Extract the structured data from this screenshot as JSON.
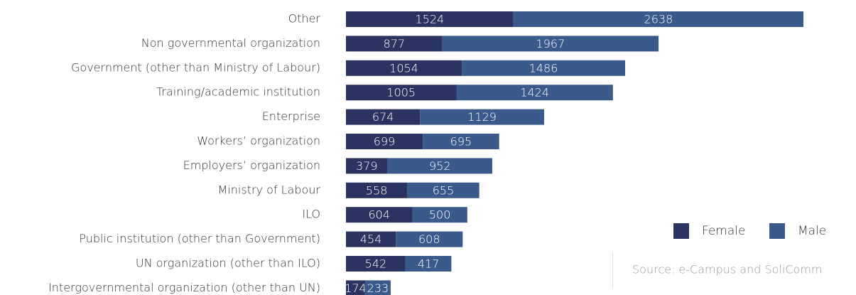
{
  "chart_data": {
    "type": "stacked_barh",
    "categories": [
      "Other",
      "Non governmental organization",
      "Government (other than Ministry of Labour)",
      "Training/academic institution",
      "Enterprise",
      "Workers’ organization",
      "Employers’ organization",
      "Ministry of Labour",
      "ILO",
      "Public institution (other than Government)",
      "UN organization (other than ILO)",
      "Intergovernmental organization (other than UN)"
    ],
    "series": [
      {
        "name": "Female",
        "color": "#2b3461",
        "values": [
          1524,
          877,
          1054,
          1005,
          674,
          699,
          379,
          558,
          604,
          454,
          542,
          174
        ]
      },
      {
        "name": "Male",
        "color": "#3a5a8c",
        "values": [
          2638,
          1967,
          1486,
          1424,
          1129,
          695,
          952,
          655,
          500,
          608,
          417,
          233
        ]
      }
    ],
    "legend": "lower right",
    "source": "Source: e-Campus and SoliComm"
  }
}
